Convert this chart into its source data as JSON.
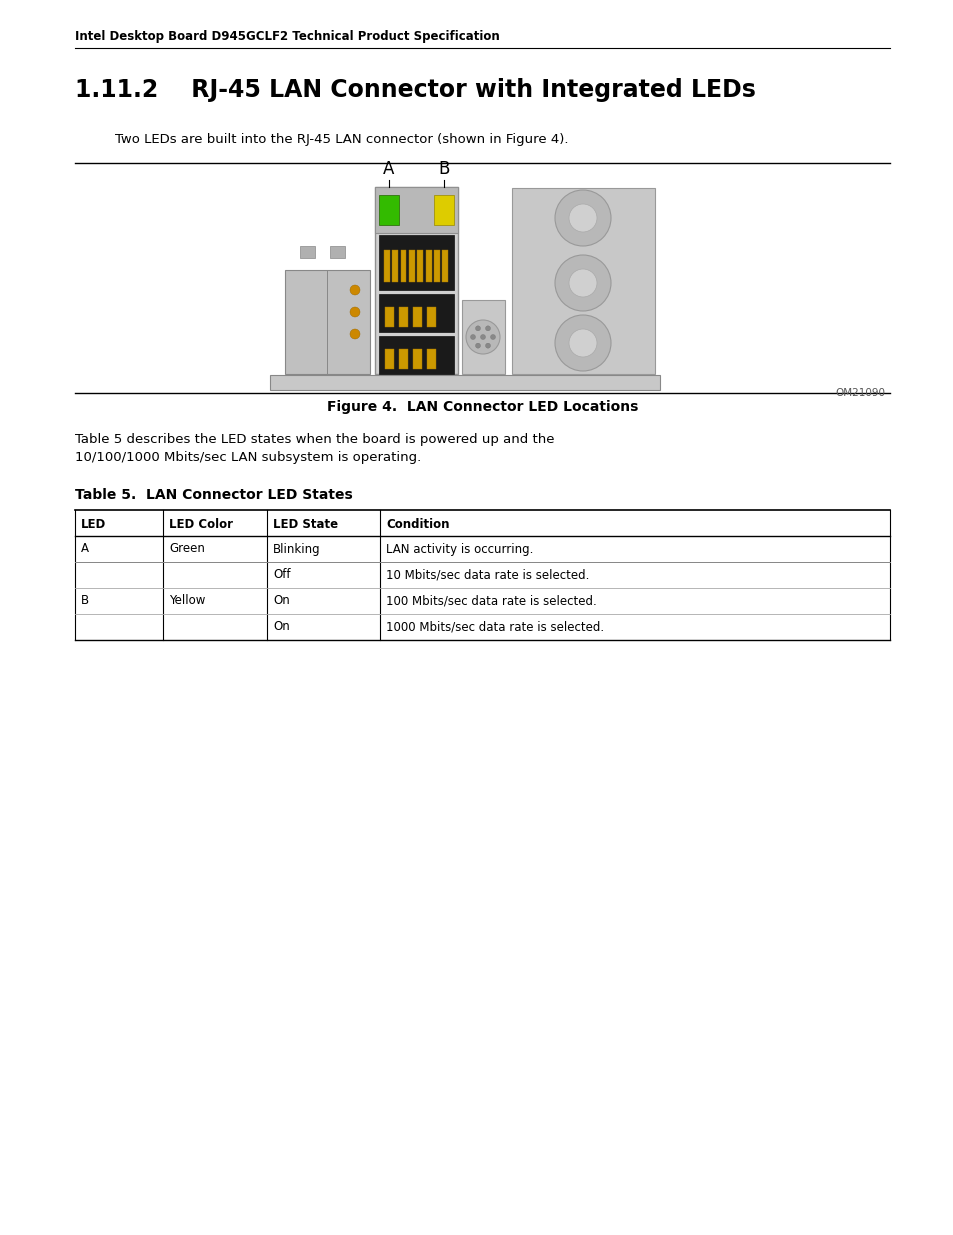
{
  "bg_color": "#ffffff",
  "header_text": "Intel Desktop Board D945GCLF2 Technical Product Specification",
  "section_title": "1.11.2    RJ-45 LAN Connector with Integrated LEDs",
  "intro_text": "Two LEDs are built into the RJ-45 LAN connector (shown in Figure 4).",
  "figure_caption": "Figure 4.  LAN Connector LED Locations",
  "figure_id": "OM21090",
  "table_title": "Table 5.  LAN Connector LED States",
  "para_text": "Table 5 describes the LED states when the board is powered up and the\n10/100/1000 Mbits/sec LAN subsystem is operating.",
  "table_headers": [
    "LED",
    "LED Color",
    "LED State",
    "Condition"
  ],
  "table_rows": [
    [
      "A",
      "Green",
      "Blinking",
      "LAN activity is occurring."
    ],
    [
      "B",
      "Yellow",
      "Off",
      "10 Mbits/sec data rate is selected."
    ],
    [
      "",
      "",
      "On",
      "100 Mbits/sec data rate is selected."
    ],
    [
      "",
      "",
      "On",
      "1000 Mbits/sec data rate is selected."
    ]
  ]
}
